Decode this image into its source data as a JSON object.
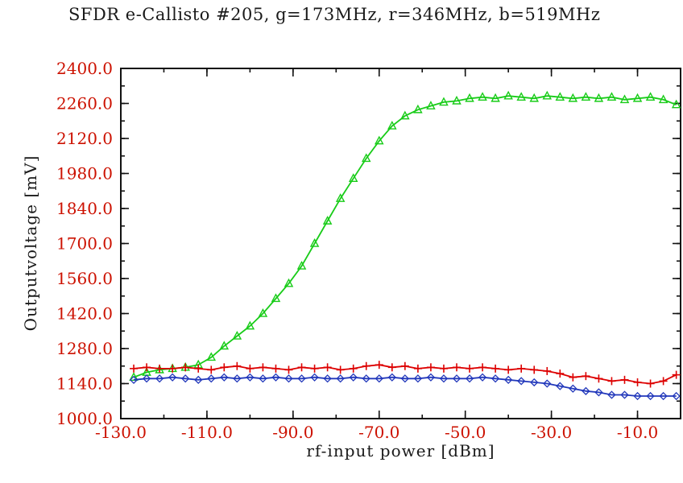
{
  "title": "SFDR e-Callisto #205, g=173MHz, r=346MHz, b=519MHz",
  "chart_data": {
    "type": "line",
    "title": "SFDR e-Callisto #205, g=173MHz, r=346MHz, b=519MHz",
    "xlabel": "rf-input power [dBm]",
    "ylabel": "Outputvoltage [mV]",
    "xlim": [
      -130,
      0
    ],
    "ylim": [
      1000,
      2400
    ],
    "xticks": [
      -130,
      -110,
      -90,
      -70,
      -50,
      -30,
      -10
    ],
    "yticks": [
      1000,
      1140,
      1280,
      1420,
      1560,
      1700,
      1840,
      1980,
      2120,
      2260,
      2400
    ],
    "x_minor_step": 10,
    "y_minor_step": 70,
    "grid": false,
    "legend": "none",
    "frame_color": "#111111",
    "tick_label_color": "#cc1100",
    "x": [
      -127,
      -124,
      -121,
      -118,
      -115,
      -112,
      -109,
      -106,
      -103,
      -100,
      -97,
      -94,
      -91,
      -88,
      -85,
      -82,
      -79,
      -76,
      -73,
      -70,
      -67,
      -64,
      -61,
      -58,
      -55,
      -52,
      -49,
      -46,
      -43,
      -40,
      -37,
      -34,
      -31,
      -28,
      -25,
      -22,
      -19,
      -16,
      -13,
      -10,
      -7,
      -4,
      -1
    ],
    "series": [
      {
        "name": "g=173MHz",
        "color": "#18cc18",
        "marker": "triangle",
        "values": [
          1165,
          1185,
          1195,
          1200,
          1205,
          1215,
          1245,
          1290,
          1330,
          1370,
          1420,
          1480,
          1540,
          1610,
          1700,
          1790,
          1880,
          1960,
          2040,
          2110,
          2170,
          2210,
          2235,
          2250,
          2265,
          2270,
          2280,
          2285,
          2280,
          2290,
          2285,
          2280,
          2290,
          2285,
          2280,
          2285,
          2280,
          2285,
          2275,
          2280,
          2285,
          2275,
          2255
        ]
      },
      {
        "name": "r=346MHz",
        "color": "#dd0000",
        "marker": "plus",
        "values": [
          1200,
          1205,
          1200,
          1200,
          1205,
          1200,
          1195,
          1205,
          1210,
          1200,
          1205,
          1200,
          1195,
          1205,
          1200,
          1205,
          1195,
          1200,
          1210,
          1215,
          1205,
          1210,
          1200,
          1205,
          1200,
          1205,
          1200,
          1205,
          1200,
          1195,
          1200,
          1195,
          1190,
          1180,
          1165,
          1170,
          1160,
          1150,
          1155,
          1145,
          1140,
          1150,
          1175
        ]
      },
      {
        "name": "b=519MHz",
        "color": "#2238bb",
        "marker": "diamond",
        "values": [
          1155,
          1160,
          1160,
          1165,
          1160,
          1155,
          1160,
          1165,
          1160,
          1165,
          1160,
          1165,
          1160,
          1160,
          1165,
          1160,
          1160,
          1165,
          1160,
          1160,
          1165,
          1160,
          1160,
          1165,
          1160,
          1160,
          1160,
          1165,
          1160,
          1155,
          1150,
          1145,
          1140,
          1130,
          1120,
          1110,
          1105,
          1095,
          1095,
          1090,
          1090,
          1090,
          1090
        ]
      }
    ]
  }
}
